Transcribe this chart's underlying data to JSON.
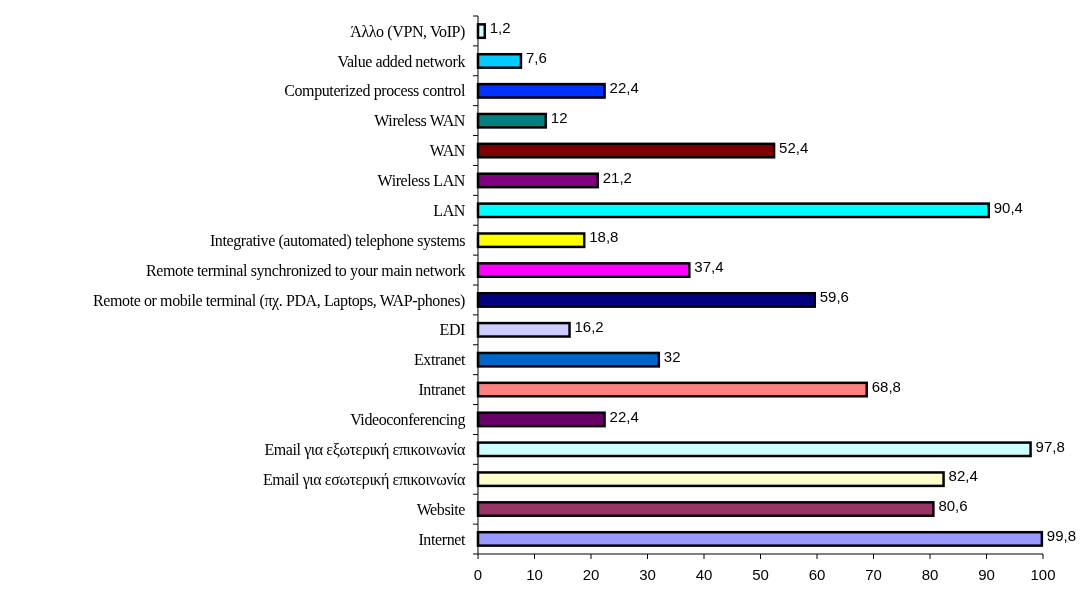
{
  "chart_data": {
    "type": "bar",
    "orientation": "horizontal",
    "categories": [
      "Άλλο (VPN, VoIP)",
      "Value added network",
      "Computerized process control",
      "Wireless WAN",
      "WAN",
      "Wireless LAN",
      "LAN",
      "Integrative (automated) telephone systems",
      "Remote terminal synchronized to your main network",
      "Remote or mobile terminal (πχ. PDA, Laptops, WAP-phones)",
      "EDI",
      "Extranet",
      "Intranet",
      "Videoconferencing",
      "Email για εξωτερική επικοινωνία",
      "Email για εσωτερική επικοινωνία",
      "Website",
      "Internet"
    ],
    "values": [
      1.2,
      7.6,
      22.4,
      12,
      52.4,
      21.2,
      90.4,
      18.8,
      37.4,
      59.6,
      16.2,
      32,
      68.8,
      22.4,
      97.8,
      82.4,
      80.6,
      99.8
    ],
    "value_labels": [
      "1,2",
      "7,6",
      "22,4",
      "12",
      "52,4",
      "21,2",
      "90,4",
      "18,8",
      "37,4",
      "59,6",
      "16,2",
      "32",
      "68,8",
      "22,4",
      "97,8",
      "82,4",
      "80,6",
      "99,8"
    ],
    "colors": [
      "#ccffff",
      "#00ccff",
      "#0033ff",
      "#008080",
      "#800000",
      "#800080",
      "#00ffff",
      "#ffff00",
      "#ff00ff",
      "#000080",
      "#ccccff",
      "#0066cc",
      "#ff8080",
      "#660066",
      "#ccffff",
      "#ffffcc",
      "#993366",
      "#9999ff"
    ],
    "xlim": [
      0,
      100
    ],
    "xticks": [
      0,
      10,
      20,
      30,
      40,
      50,
      60,
      70,
      80,
      90,
      100
    ],
    "grid": false
  }
}
